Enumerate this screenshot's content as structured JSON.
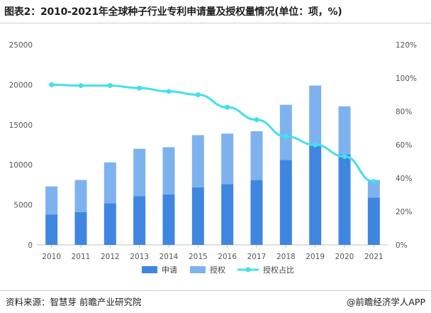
{
  "title": "图表2：2010-2021年全球种子行业专利申请量及授权量情况(单位：项，%)",
  "footer": {
    "source": "资料来源：智慧芽 前瞻产业研究院",
    "brand": "@前瞻经济学人APP"
  },
  "chart_data": {
    "type": "bar",
    "stacked": true,
    "categories": [
      "2010",
      "2011",
      "2012",
      "2013",
      "2014",
      "2015",
      "2016",
      "2017",
      "2018",
      "2019",
      "2020",
      "2021"
    ],
    "series": [
      {
        "name": "申请",
        "values": [
          3800,
          4100,
          5200,
          6100,
          6300,
          7200,
          7600,
          8100,
          10600,
          12400,
          11300,
          5900
        ],
        "color": "#3f86e0"
      },
      {
        "name": "授权",
        "values": [
          3500,
          4000,
          5100,
          5900,
          5900,
          6500,
          6300,
          6100,
          6900,
          7500,
          6000,
          2200
        ],
        "color": "#7eb2ef"
      }
    ],
    "line_series": {
      "name": "授权占比",
      "values": [
        96,
        95.5,
        95.5,
        94,
        92,
        90,
        82.5,
        75,
        65,
        60,
        53,
        38
      ],
      "color": "#43e0ea"
    },
    "ylim": [
      0,
      25000
    ],
    "yticks": [
      "0",
      "5000",
      "10000",
      "15000",
      "20000",
      "25000"
    ],
    "y2lim": [
      0,
      120
    ],
    "y2ticks": [
      "0%",
      "20%",
      "40%",
      "60%",
      "80%",
      "100%",
      "120%"
    ],
    "legend_position": "bottom",
    "grid": false
  },
  "colors": {
    "bar_apply": "#3f86e0",
    "bar_grant": "#7eb2ef",
    "line": "#43e0ea"
  }
}
